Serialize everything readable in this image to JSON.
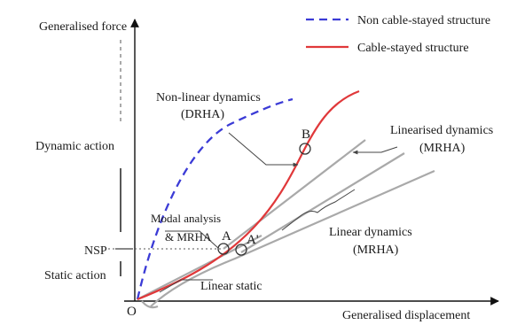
{
  "legend": {
    "non_cable": "Non cable-stayed structure",
    "cable": "Cable-stayed structure"
  },
  "axes": {
    "y_label": "Generalised force",
    "x_label": "Generalised displacement",
    "origin": "O"
  },
  "regions": {
    "dynamic": "Dynamic action",
    "static": "Static action",
    "nsp": "NSP"
  },
  "annotations": {
    "nonlinear_dyn_1": "Non-linear dynamics",
    "nonlinear_dyn_2": "(DRHA)",
    "linearised_dyn_1": "Linearised dynamics",
    "linearised_dyn_2": "(MRHA)",
    "modal_1": "Modal analysis",
    "modal_2": "& MRHA",
    "linear_dyn_1": "Linear dynamics",
    "linear_dyn_2": "(MRHA)",
    "linear_static": "Linear static"
  },
  "points": {
    "a": "A",
    "a_prime": "A'",
    "b": "B"
  },
  "colors": {
    "non_cable": "#3b3bd6",
    "cable": "#e0383a",
    "linear": "#a9a9a9",
    "axis": "#111111"
  }
}
